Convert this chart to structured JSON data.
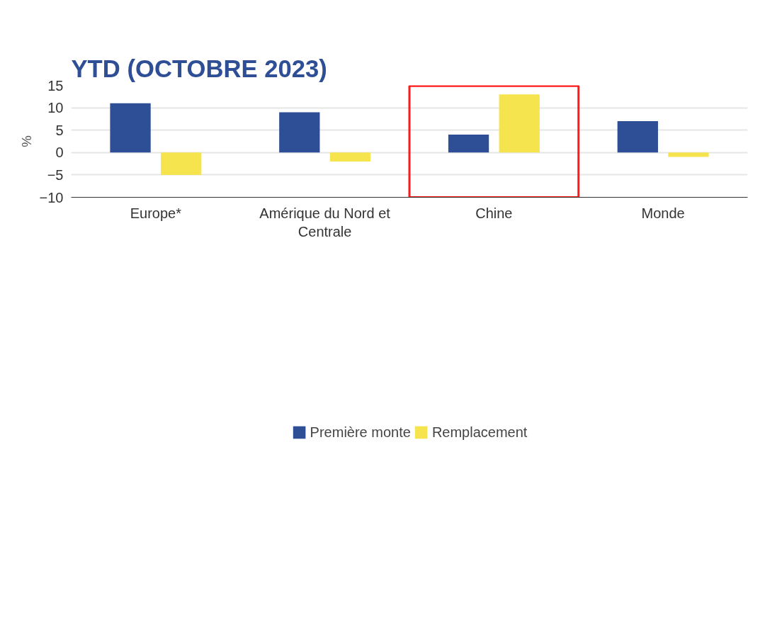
{
  "chart_data": {
    "type": "bar",
    "title": "YTD (OCTOBRE 2023)",
    "ylabel": "%",
    "categories": [
      "Europe*",
      "Amérique du Nord et Centrale",
      "Chine",
      "Monde"
    ],
    "series": [
      {
        "name": "Première monte",
        "color": "#2e4f96",
        "values": [
          11,
          9,
          4,
          7
        ]
      },
      {
        "name": "Remplacement",
        "color": "#f5e44e",
        "values": [
          -5,
          -2,
          13,
          -1
        ]
      }
    ],
    "ylim": [
      -10,
      15
    ],
    "yticks": [
      -10,
      -5,
      0,
      5,
      10,
      15
    ],
    "grid": "y",
    "legend": "bottom"
  }
}
